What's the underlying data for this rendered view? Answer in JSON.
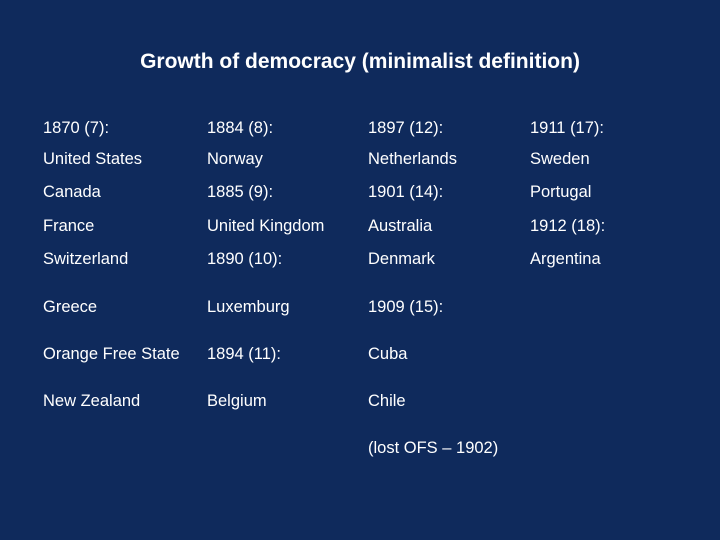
{
  "title": "Growth of democracy (minimalist definition)",
  "columns": [
    {
      "items": [
        "1870 (7):",
        "United States",
        "Canada",
        "France",
        "Switzerland",
        "Greece",
        "Orange Free State",
        "New Zealand"
      ]
    },
    {
      "items": [
        "1884 (8):",
        "Norway",
        "1885 (9):",
        "United Kingdom",
        "1890 (10):",
        "Luxemburg",
        "1894 (11):",
        "Belgium"
      ]
    },
    {
      "items": [
        "1897 (12):",
        "Netherlands",
        "1901 (14):",
        "Australia",
        "Denmark",
        "1909 (15):",
        "Cuba",
        "Chile",
        "(lost OFS – 1902)"
      ]
    },
    {
      "items": [
        "1911 (17):",
        "Sweden",
        "Portugal",
        "1912 (18):",
        "Argentina"
      ]
    }
  ]
}
